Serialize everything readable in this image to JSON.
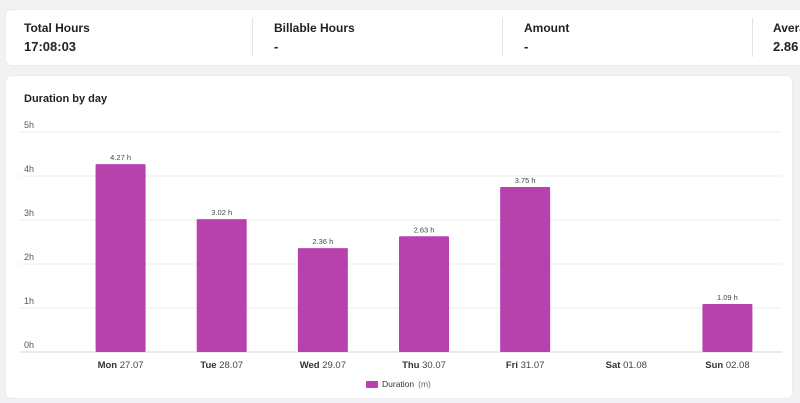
{
  "stats": [
    {
      "label": "Total Hours",
      "value": "17:08:03"
    },
    {
      "label": "Billable Hours",
      "value": "-"
    },
    {
      "label": "Amount",
      "value": "-"
    },
    {
      "label": "Avera",
      "value": "2.86"
    }
  ],
  "chart_data": {
    "type": "bar",
    "title": "Duration by day",
    "categories": [
      {
        "day": "Mon",
        "date": "27.07"
      },
      {
        "day": "Tue",
        "date": "28.07"
      },
      {
        "day": "Wed",
        "date": "29.07"
      },
      {
        "day": "Thu",
        "date": "30.07"
      },
      {
        "day": "Fri",
        "date": "31.07"
      },
      {
        "day": "Sat",
        "date": "01.08"
      },
      {
        "day": "Sun",
        "date": "02.08"
      }
    ],
    "values": [
      4.27,
      3.02,
      2.36,
      2.63,
      3.75,
      0,
      1.09
    ],
    "value_labels": [
      "4.27 h",
      "3.02 h",
      "2.36 h",
      "2.63 h",
      "3.75 h",
      "",
      "1.09 h"
    ],
    "yticks": [
      "0h",
      "1h",
      "2h",
      "3h",
      "4h",
      "5h"
    ],
    "ylim": [
      0,
      5
    ],
    "grid": true,
    "legend": {
      "position": "bottom",
      "name": "Duration",
      "unit": "(m)"
    },
    "color": "#b742ae"
  }
}
